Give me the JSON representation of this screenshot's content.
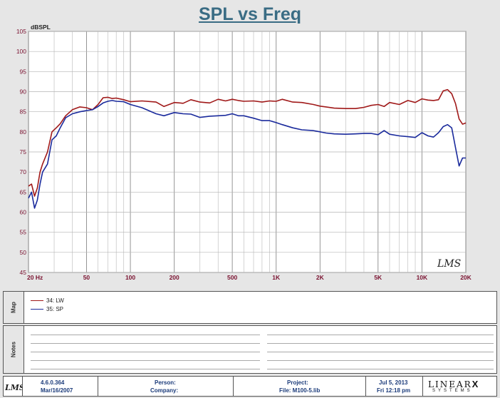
{
  "title": "SPL vs Freq",
  "chart_data": {
    "type": "line",
    "x_scale": "log",
    "y_unit": "dBSPL",
    "xlim": [
      20,
      20000
    ],
    "ylim": [
      45,
      105
    ],
    "y_ticks": [
      45,
      50,
      55,
      60,
      65,
      70,
      75,
      80,
      85,
      90,
      95,
      100,
      105
    ],
    "x_ticks": [
      20,
      50,
      100,
      200,
      500,
      1000,
      2000,
      5000,
      10000,
      20000
    ],
    "x_tick_labels": [
      "20  Hz",
      "50",
      "100",
      "200",
      "500",
      "1K",
      "2K",
      "5K",
      "10K",
      "20K"
    ],
    "grid": true,
    "series": [
      {
        "name": "34: LW",
        "color": "#a01919",
        "x": [
          20,
          21,
          22,
          23,
          24,
          25,
          27,
          29,
          31,
          33,
          36,
          40,
          45,
          50,
          55,
          60,
          65,
          70,
          75,
          80,
          90,
          100,
          120,
          150,
          170,
          200,
          230,
          260,
          300,
          350,
          400,
          450,
          500,
          550,
          600,
          700,
          800,
          900,
          1000,
          1100,
          1300,
          1500,
          1800,
          2000,
          2200,
          2500,
          3000,
          3500,
          4000,
          4500,
          5000,
          5500,
          6000,
          7000,
          8000,
          9000,
          10000,
          11000,
          12000,
          13000,
          14000,
          15000,
          16000,
          17000,
          18000,
          19000,
          20000
        ],
        "y": [
          66.5,
          67,
          64,
          66,
          70,
          72,
          75,
          80,
          81,
          82,
          84,
          85.5,
          86.2,
          86,
          85.5,
          86.8,
          88.5,
          88.6,
          88.3,
          88.4,
          88,
          87.5,
          87.7,
          87.4,
          86.3,
          87.3,
          87.1,
          88,
          87.4,
          87.2,
          88.1,
          87.7,
          88.1,
          87.8,
          87.6,
          87.7,
          87.4,
          87.7,
          87.6,
          88.1,
          87.4,
          87.3,
          86.8,
          86.4,
          86.2,
          85.9,
          85.8,
          85.8,
          86.1,
          86.6,
          86.8,
          86.3,
          87.3,
          86.8,
          87.8,
          87.3,
          88.2,
          87.9,
          87.8,
          88,
          90.2,
          90.5,
          89.5,
          87,
          83.2,
          81.9,
          82.2
        ]
      },
      {
        "name": "35: SP",
        "color": "#1a2a9c",
        "x": [
          20,
          21,
          22,
          23,
          24,
          25,
          27,
          29,
          31,
          33,
          36,
          40,
          45,
          50,
          55,
          60,
          65,
          70,
          75,
          80,
          90,
          100,
          120,
          150,
          170,
          200,
          230,
          260,
          300,
          350,
          400,
          450,
          500,
          550,
          600,
          700,
          800,
          900,
          1000,
          1100,
          1300,
          1500,
          1800,
          2000,
          2200,
          2500,
          3000,
          3500,
          4000,
          4500,
          5000,
          5500,
          6000,
          7000,
          8000,
          9000,
          10000,
          11000,
          12000,
          13000,
          14000,
          15000,
          16000,
          17000,
          18000,
          19000,
          20000
        ],
        "y": [
          63.5,
          65,
          61,
          63,
          67,
          70,
          72,
          78,
          79,
          81,
          83.5,
          84.5,
          85,
          85.3,
          85.5,
          86.3,
          87.2,
          87.6,
          87.8,
          87.6,
          87.5,
          86.8,
          86,
          84.5,
          84,
          84.8,
          84.5,
          84.4,
          83.6,
          83.9,
          84,
          84.1,
          84.5,
          84,
          84,
          83.4,
          82.8,
          82.8,
          82.3,
          81.8,
          81,
          80.5,
          80.3,
          80,
          79.7,
          79.5,
          79.4,
          79.5,
          79.6,
          79.6,
          79.3,
          80.3,
          79.4,
          79,
          78.8,
          78.6,
          79.8,
          79,
          78.7,
          79.8,
          81.3,
          81.8,
          81,
          76,
          71.5,
          73.5,
          73.5
        ]
      }
    ]
  },
  "map": {
    "label": "Map",
    "items": [
      {
        "label": "34: LW",
        "color": "#a01919"
      },
      {
        "label": "35: SP",
        "color": "#1a2a9c"
      }
    ]
  },
  "notes": {
    "label": "Notes"
  },
  "footer": {
    "version": "4.6.0.364",
    "version_date": "Mar/16/2007",
    "person_label": "Person:",
    "company_label": "Company:",
    "project_label": "Project:",
    "file_label": "File: M100-5.lib",
    "date": "Jul  5, 2013",
    "time": "Fri 12:18 pm",
    "brand": "LINEAR",
    "brand_x": "X",
    "brand_sub": "SYSTEMS"
  }
}
